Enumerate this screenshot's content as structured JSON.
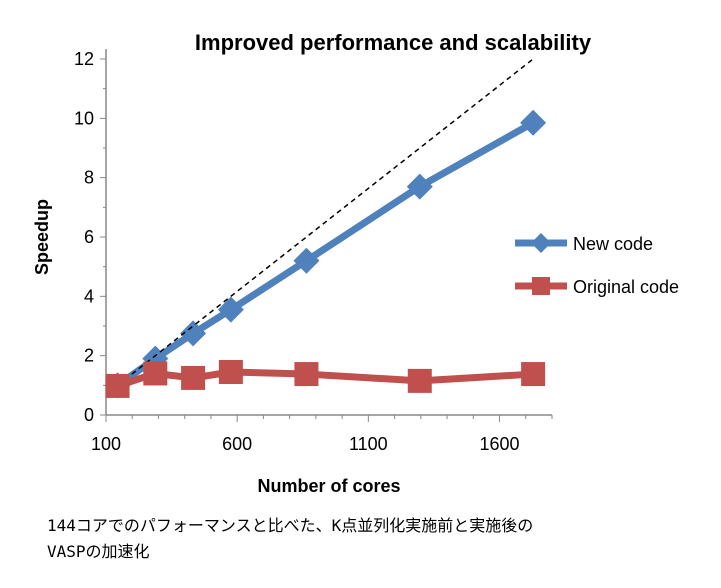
{
  "chart_data": {
    "type": "line",
    "title": "Improved performance and scalability",
    "xlabel": "Number of cores",
    "ylabel": "Speedup",
    "xlim": [
      100,
      1800
    ],
    "ylim": [
      0,
      12
    ],
    "xticks": [
      100,
      600,
      1100,
      1600
    ],
    "yticks": [
      0,
      2,
      4,
      6,
      8,
      10,
      12
    ],
    "x": [
      144,
      288,
      432,
      576,
      864,
      1296,
      1728
    ],
    "series": [
      {
        "name": "New code",
        "color": "#4F81BD",
        "marker": "diamond",
        "values": [
          1.0,
          1.9,
          2.75,
          3.55,
          5.2,
          7.7,
          9.85
        ]
      },
      {
        "name": "Original code",
        "color": "#C0504D",
        "marker": "square",
        "values": [
          0.98,
          1.4,
          1.25,
          1.45,
          1.38,
          1.15,
          1.38
        ]
      }
    ],
    "ideal_line": {
      "style": "dashed",
      "x": [
        144,
        1728
      ],
      "y": [
        1,
        12
      ]
    },
    "legend": "right"
  },
  "caption": {
    "line1": "144コアでのパフォーマンスと比べた、K点並列化実施前と実施後の",
    "line2": "VASPの加速化"
  }
}
